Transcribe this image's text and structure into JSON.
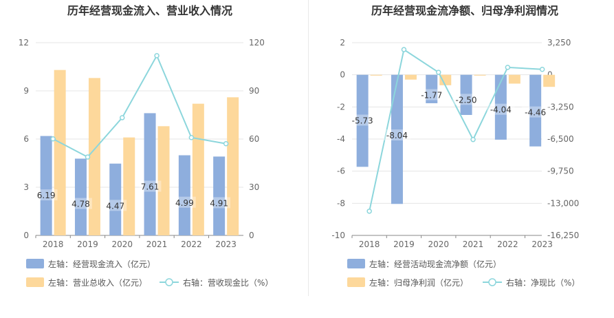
{
  "chart_data": [
    {
      "type": "bar",
      "title": "历年经营现金流入、营业收入情况",
      "categories": [
        "2018",
        "2019",
        "2020",
        "2021",
        "2022",
        "2023"
      ],
      "y_left": {
        "ticks": [
          "0",
          "3",
          "6",
          "9",
          "12"
        ],
        "range": [
          0,
          12
        ]
      },
      "y_right": {
        "ticks": [
          "0",
          "30",
          "60",
          "90",
          "120"
        ],
        "range": [
          0,
          120
        ]
      },
      "series": [
        {
          "name": "左轴：经营现金流入（亿元）",
          "kind": "bar",
          "axis": "left",
          "color": "#8eaedd",
          "values": [
            6.19,
            4.78,
            4.47,
            7.61,
            4.99,
            4.91
          ],
          "labels": [
            "6.19",
            "4.78",
            "4.47",
            "7.61",
            "4.99",
            "4.91"
          ]
        },
        {
          "name": "左轴：营业总收入（亿元）",
          "kind": "bar",
          "axis": "left",
          "color": "#fdd89b",
          "values": [
            10.3,
            9.8,
            6.1,
            6.8,
            8.2,
            8.6
          ]
        },
        {
          "name": "右轴：营收现金比（%）",
          "kind": "line",
          "axis": "right",
          "color": "#8cd6dc",
          "values": [
            60.1,
            48.8,
            73.3,
            111.9,
            60.9,
            57.1
          ]
        }
      ]
    },
    {
      "type": "bar",
      "title": "历年经营现金流净额、归母净利润情况",
      "categories": [
        "2018",
        "2019",
        "2020",
        "2021",
        "2022",
        "2023"
      ],
      "y_left": {
        "ticks": [
          "2",
          "0",
          "-2",
          "-4",
          "-6",
          "-8",
          "-10"
        ],
        "range": [
          -10,
          2
        ]
      },
      "y_right": {
        "ticks": [
          "3,250",
          "0",
          "-3,250",
          "-6,500",
          "-9,750",
          "-13,000",
          "-16,250"
        ],
        "range": [
          -16250,
          3250
        ]
      },
      "series": [
        {
          "name": "左轴：经营活动现金流净额（亿元）",
          "kind": "bar",
          "axis": "left",
          "color": "#8eaedd",
          "values": [
            -5.73,
            -8.04,
            -1.77,
            -2.5,
            -4.04,
            -4.46
          ],
          "labels": [
            "-5.73",
            "-8.04",
            "-1.77",
            "-2.50",
            "-4.04",
            "-4.46"
          ]
        },
        {
          "name": "左轴：归母净利润（亿元）",
          "kind": "bar",
          "axis": "left",
          "color": "#fdd89b",
          "values": [
            -0.05,
            -0.3,
            -0.65,
            -0.05,
            -0.55,
            -0.75
          ]
        },
        {
          "name": "右轴：净现比（%）",
          "kind": "line",
          "axis": "right",
          "color": "#8cd6dc",
          "values": [
            -13800,
            2550,
            250,
            -6550,
            750,
            550
          ]
        }
      ]
    }
  ]
}
